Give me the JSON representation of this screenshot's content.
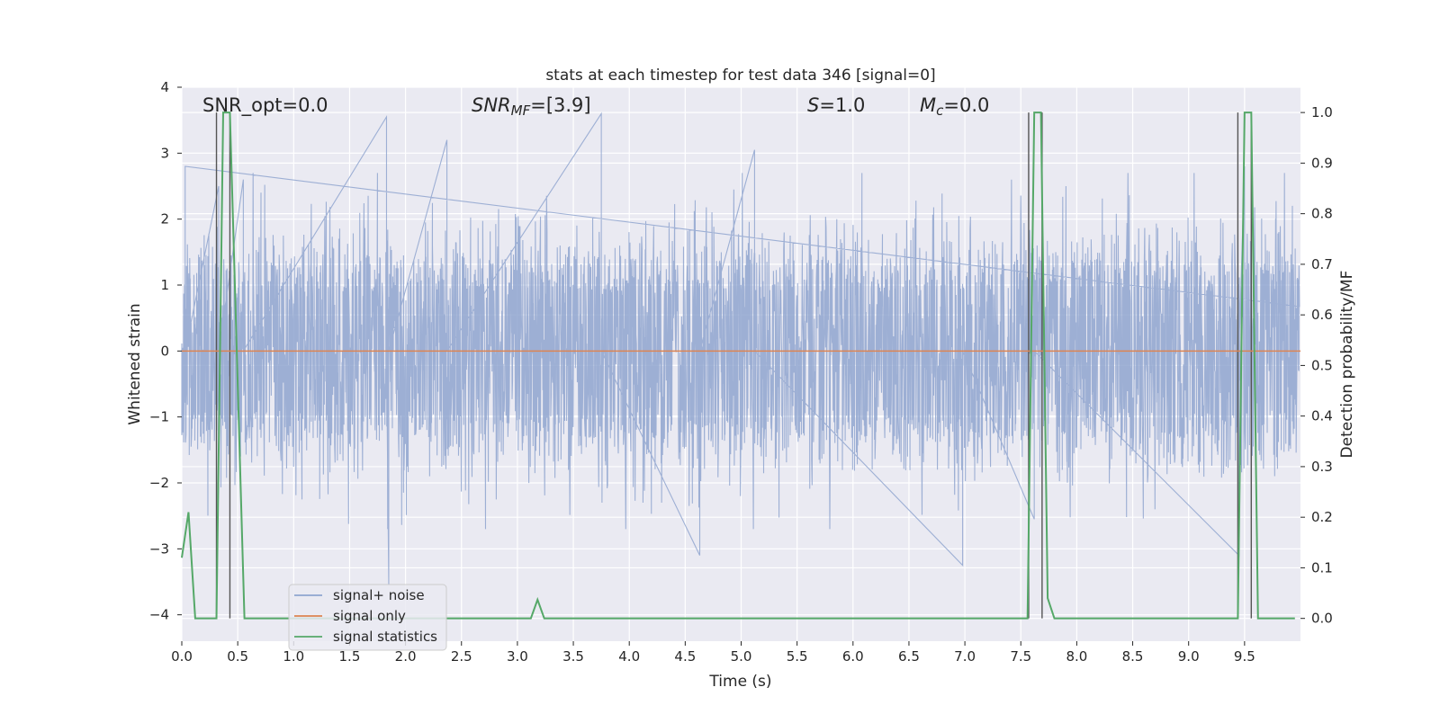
{
  "chart_data": {
    "type": "line",
    "title": "stats at each timestep for test data 346 [signal=0]",
    "xlabel": "Time (s)",
    "ylabel_left": "Whitened strain",
    "ylabel_right": "Detection probability/MF",
    "xlim": [
      0.0,
      10.0
    ],
    "ylim_left": [
      -4.4,
      4.0
    ],
    "ylim_right": [
      -0.045,
      1.05
    ],
    "x_ticks": [
      "0.0",
      "0.5",
      "1.0",
      "1.5",
      "2.0",
      "2.5",
      "3.0",
      "3.5",
      "4.0",
      "4.5",
      "5.0",
      "5.5",
      "6.0",
      "6.5",
      "7.0",
      "7.5",
      "8.0",
      "8.5",
      "9.0",
      "9.5"
    ],
    "y_ticks_left": [
      "−4",
      "−3",
      "−2",
      "−1",
      "0",
      "1",
      "2",
      "3",
      "4"
    ],
    "y_ticks_right": [
      "0.0",
      "0.1",
      "0.2",
      "0.3",
      "0.4",
      "0.5",
      "0.6",
      "0.7",
      "0.8",
      "0.9",
      "1.0"
    ],
    "grid": true,
    "legend_position": "lower-left",
    "annotations": {
      "snr_opt": "SNR_opt=0.0",
      "snr_mf_main": "SNR",
      "snr_mf_sub": "MF",
      "snr_mf_val": "=[3.9]",
      "s_main": "S",
      "s_val": "=1.0",
      "mc_main": "M",
      "mc_sub": "c",
      "mc_val": "=0.0"
    },
    "series": [
      {
        "name": "signal+ noise",
        "color": "#8fa5cf",
        "axis": "left",
        "description_values": "dense whitened noise, mostly within ±1.3 with spikes up to about ±3.6",
        "peaks": [
          {
            "x": 0.03,
            "y": 2.8
          },
          {
            "x": 0.33,
            "y": 2.5
          },
          {
            "x": 0.55,
            "y": 2.6
          },
          {
            "x": 1.83,
            "y": 3.55
          },
          {
            "x": 1.85,
            "y": -3.55
          },
          {
            "x": 2.37,
            "y": 3.2
          },
          {
            "x": 3.75,
            "y": 3.6
          },
          {
            "x": 4.63,
            "y": -3.1
          },
          {
            "x": 5.12,
            "y": 3.05
          },
          {
            "x": 6.98,
            "y": -3.25
          },
          {
            "x": 7.62,
            "y": -2.55
          },
          {
            "x": 9.45,
            "y": -3.1
          },
          {
            "x": 9.5,
            "y": 2.8
          }
        ]
      },
      {
        "name": "signal only",
        "color": "#dd8452",
        "axis": "left",
        "x": [
          0.0,
          10.0
        ],
        "y": [
          0.0,
          0.0
        ]
      },
      {
        "name": "signal statistics",
        "color": "#55a868",
        "axis": "right",
        "x": [
          0.0,
          0.06,
          0.12,
          0.31,
          0.37,
          0.43,
          0.56,
          3.12,
          3.18,
          3.24,
          7.56,
          7.62,
          7.68,
          7.74,
          7.8,
          9.44,
          9.5,
          9.56,
          9.62,
          9.95
        ],
        "y": [
          0.12,
          0.21,
          0.0,
          0.0,
          1.0,
          1.0,
          0.0,
          0.0,
          0.037,
          0.0,
          0.0,
          1.0,
          1.0,
          0.04,
          0.0,
          0.0,
          1.0,
          1.0,
          0.0,
          0.0
        ]
      }
    ],
    "vertical_lines_x": [
      0.31,
      0.43,
      7.57,
      7.69,
      9.44,
      9.56
    ],
    "vertical_line_color": "#555555"
  }
}
